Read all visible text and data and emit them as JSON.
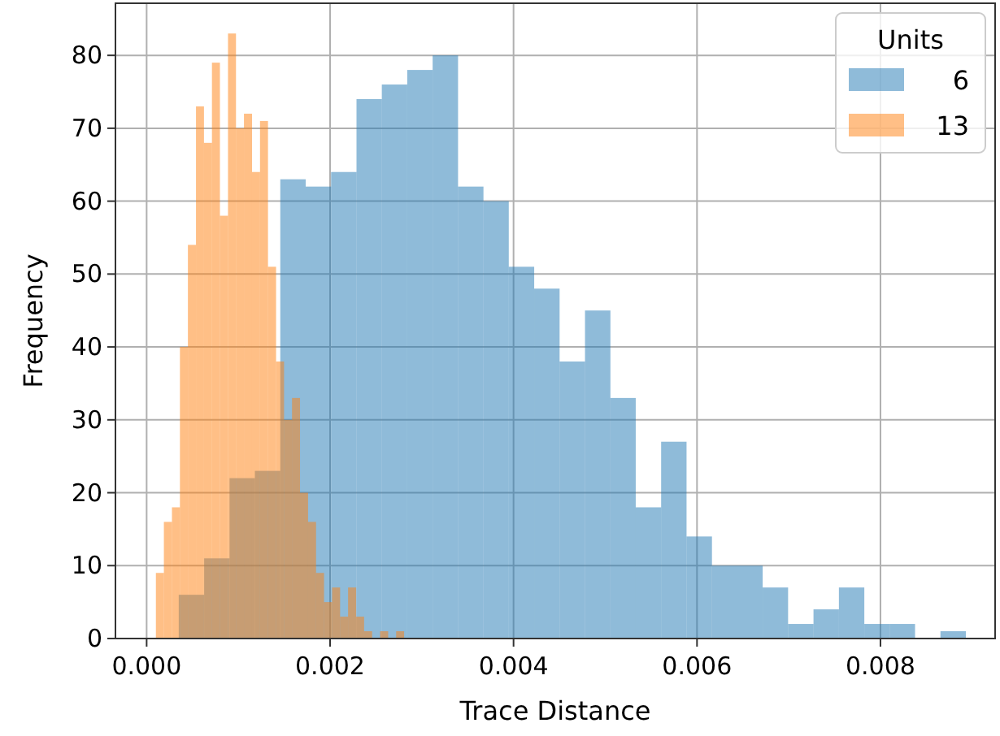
{
  "chart_data": {
    "type": "histogram",
    "xlabel": "Trace Distance",
    "ylabel": "Frequency",
    "legend_title": "Units",
    "legend": "top right",
    "grid": true,
    "xlim": [
      -0.00034,
      0.00925
    ],
    "ylim": [
      0,
      87.15
    ],
    "xticks": [
      {
        "value": 0,
        "label": "0.000"
      },
      {
        "value": 0.002,
        "label": "0.002"
      },
      {
        "value": 0.004,
        "label": "0.004"
      },
      {
        "value": 0.006,
        "label": "0.006"
      },
      {
        "value": 0.008,
        "label": "0.008"
      }
    ],
    "yticks": [
      0,
      10,
      20,
      30,
      40,
      50,
      60,
      70,
      80
    ],
    "bins": [
      0.00035,
      0.000627,
      0.000904,
      0.00118,
      0.001457,
      0.001734,
      0.002011,
      0.002288,
      0.002564,
      0.002841,
      0.003118,
      0.003395,
      0.003672,
      0.003948,
      0.004225,
      0.004502,
      0.004779,
      0.005056,
      0.005332,
      0.005609,
      0.005886,
      0.006163,
      0.00644,
      0.006716,
      0.006993,
      0.00727,
      0.007547,
      0.007824,
      0.0081,
      0.008377,
      0.008654,
      0.008931
    ],
    "series": [
      {
        "name": "6",
        "color": "#1f77b4",
        "values": [
          6,
          11,
          22,
          23,
          63,
          62,
          64,
          74,
          76,
          78,
          80,
          62,
          60,
          51,
          48,
          38,
          45,
          33,
          18,
          27,
          14,
          10,
          10,
          7,
          2,
          4,
          7,
          2,
          2,
          0,
          1
        ]
      },
      {
        "name": "13",
        "color": "#ff7f0e",
        "bins": [
          0.000101,
          0.000188,
          0.000276,
          0.000363,
          0.00045,
          0.000538,
          0.000625,
          0.000712,
          0.000799,
          0.000887,
          0.000974,
          0.001061,
          0.001149,
          0.001236,
          0.001323,
          0.001411,
          0.001498,
          0.001585,
          0.001672,
          0.00176,
          0.001847,
          0.001934,
          0.002022,
          0.002109,
          0.002196,
          0.002284,
          0.002371,
          0.002458,
          0.002545,
          0.002633,
          0.00272,
          0.002807
        ],
        "values": [
          9,
          16,
          18,
          40,
          54,
          73,
          68,
          79,
          58,
          83,
          70,
          72,
          64,
          71,
          51,
          38,
          30,
          33,
          20,
          16,
          9,
          5,
          7,
          3,
          7,
          3,
          1,
          0,
          1,
          0,
          1
        ]
      }
    ]
  }
}
